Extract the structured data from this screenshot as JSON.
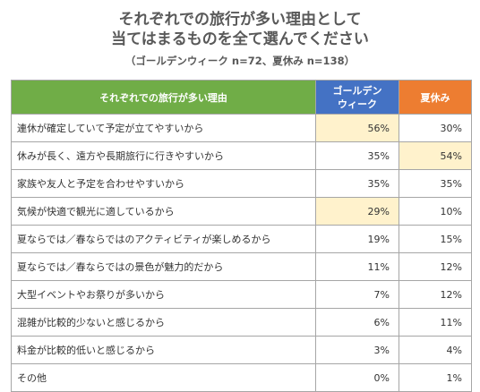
{
  "title_line1": "それぞれでの旅行が多い理由として",
  "title_line2": "当てはまるものを全て選んでください",
  "subtitle": "（ゴールデンウィーク n=72、夏休み n=138）",
  "colors": {
    "reason_header": "#70ad47",
    "gw_header": "#4472c4",
    "summer_header": "#ed7d31",
    "highlight": "#fff2cc"
  },
  "chart_data": {
    "type": "table",
    "columns": [
      "それぞれでの旅行が多い理由",
      "ゴールデンウィーク",
      "夏休み"
    ],
    "header_labels": {
      "reason": "それぞれでの旅行が多い理由",
      "gw_line1": "ゴールデン",
      "gw_line2": "ウィーク",
      "summer": "夏休み"
    },
    "rows": [
      {
        "label": "連休が確定していて予定が立てやすいから",
        "gw": "56%",
        "summer": "30%",
        "highlight": "gw"
      },
      {
        "label": "休みが長く、遠方や長期旅行に行きやすいから",
        "gw": "35%",
        "summer": "54%",
        "highlight": "summer"
      },
      {
        "label": "家族や友人と予定を合わせやすいから",
        "gw": "35%",
        "summer": "35%",
        "highlight": ""
      },
      {
        "label": "気候が快適で観光に適しているから",
        "gw": "29%",
        "summer": "10%",
        "highlight": "gw"
      },
      {
        "label": "夏ならでは／春ならではのアクティビティが楽しめるから",
        "gw": "19%",
        "summer": "15%",
        "highlight": ""
      },
      {
        "label": "夏ならでは／春ならではの景色が魅力的だから",
        "gw": "11%",
        "summer": "12%",
        "highlight": ""
      },
      {
        "label": "大型イベントやお祭りが多いから",
        "gw": "7%",
        "summer": "12%",
        "highlight": ""
      },
      {
        "label": "混雑が比較的少ないと感じるから",
        "gw": "6%",
        "summer": "11%",
        "highlight": ""
      },
      {
        "label": "料金が比較的低いと感じるから",
        "gw": "3%",
        "summer": "4%",
        "highlight": ""
      },
      {
        "label": "その他",
        "gw": "0%",
        "summer": "1%",
        "highlight": ""
      }
    ]
  }
}
